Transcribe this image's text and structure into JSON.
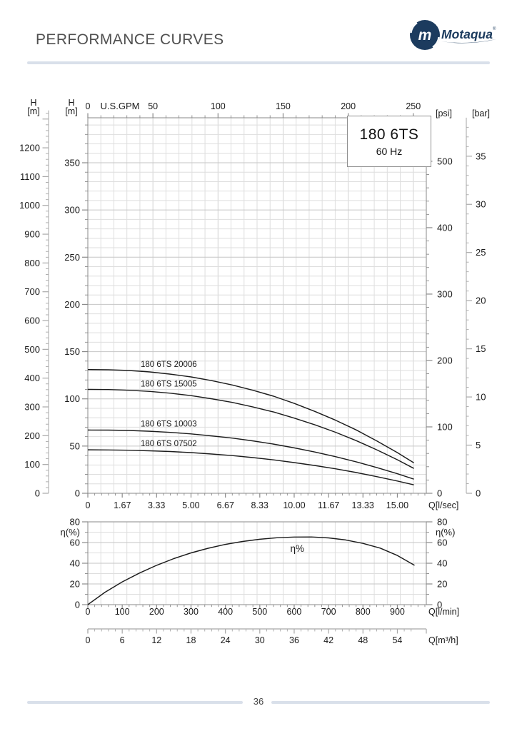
{
  "page": {
    "title": "PERFORMANCE CURVES",
    "page_number": "36"
  },
  "logo": {
    "name": "Motaqua",
    "monogram": "m",
    "registered_mark": "®"
  },
  "model_box": {
    "model": "180 6TS",
    "frequency": "60 Hz"
  },
  "colors": {
    "navy": "#1c3b5e",
    "divider": "#d9e0ea",
    "title_text": "#4f4f4f",
    "curve": "#1c1c1c",
    "grid_minor": "#dedede",
    "grid_major": "#c6c6c6",
    "frame": "#9c9c9c",
    "tick": "#8a8a8a",
    "label_text": "#1a1a1a"
  },
  "chart_data": [
    {
      "id": "head_flow_chart",
      "type": "line",
      "title": "180 6TS 60 Hz head vs flow curves",
      "axes": {
        "top": {
          "title": "U.S.GPM",
          "tick_labels": [
            "0",
            "50",
            "100",
            "150",
            "200",
            "250"
          ],
          "minor_step": 10,
          "max": 260
        },
        "bottom": {
          "title": "Q[l/sec]",
          "tick_labels": [
            "0",
            "1.67",
            "3.33",
            "5.00",
            "6.67",
            "8.33",
            "10.00",
            "11.67",
            "13.33",
            "15.00"
          ]
        },
        "left_outer": {
          "title_line1": "H",
          "title_line2": "[m]",
          "tick_labels": [
            "0",
            "100",
            "200",
            "300",
            "400",
            "500",
            "600",
            "700",
            "800",
            "900",
            "1000",
            "1100",
            "1200"
          ],
          "minor_step": 20,
          "max": 1330
        },
        "left_inner": {
          "title_line1": "H",
          "title_line2": "[m]",
          "tick_labels": [
            "0",
            "50",
            "100",
            "150",
            "200",
            "250",
            "300",
            "350"
          ],
          "minor_step": 10,
          "max": 392
        },
        "right_inner": {
          "title": "[psi]",
          "tick_labels": [
            "0",
            "100",
            "200",
            "300",
            "400",
            "500"
          ],
          "minor_step": 20,
          "max": 565
        },
        "right_outer": {
          "title": "[bar]",
          "tick_labels": [
            "0",
            "5",
            "10",
            "15",
            "20",
            "25",
            "30",
            "35"
          ],
          "minor_step": 1,
          "max": 39
        }
      },
      "series": [
        {
          "name": "180 6TS 20006",
          "label_q_lps": 2.56,
          "points_q_lps_h_m": [
            [
              0,
              131
            ],
            [
              1,
              130.8
            ],
            [
              2,
              130.0
            ],
            [
              3,
              128.5
            ],
            [
              4,
              126.2
            ],
            [
              5,
              123.2
            ],
            [
              6,
              119.3
            ],
            [
              7,
              114.7
            ],
            [
              8,
              109.1
            ],
            [
              9,
              102.8
            ],
            [
              10,
              95.2
            ],
            [
              11,
              86.7
            ],
            [
              12,
              77.4
            ],
            [
              13,
              67.1
            ],
            [
              14,
              55.5
            ],
            [
              15,
              43.1
            ],
            [
              15.8,
              32.2
            ]
          ]
        },
        {
          "name": "180 6TS 15005",
          "label_q_lps": 2.56,
          "points_q_lps_h_m": [
            [
              0,
              110
            ],
            [
              1,
              109.8
            ],
            [
              2,
              109.1
            ],
            [
              3,
              107.9
            ],
            [
              4,
              106.0
            ],
            [
              5,
              103.4
            ],
            [
              6,
              100.1
            ],
            [
              7,
              96.2
            ],
            [
              8,
              91.4
            ],
            [
              9,
              86.1
            ],
            [
              10,
              79.6
            ],
            [
              11,
              72.5
            ],
            [
              12,
              64.6
            ],
            [
              13,
              55.8
            ],
            [
              14,
              46.0
            ],
            [
              15,
              35.5
            ],
            [
              15.8,
              26.3
            ]
          ]
        },
        {
          "name": "180 6TS 10003",
          "label_q_lps": 2.56,
          "points_q_lps_h_m": [
            [
              0,
              67
            ],
            [
              1,
              66.9
            ],
            [
              2,
              66.5
            ],
            [
              3,
              65.7
            ],
            [
              4,
              64.5
            ],
            [
              5,
              62.9
            ],
            [
              6,
              60.8
            ],
            [
              7,
              58.4
            ],
            [
              8,
              55.5
            ],
            [
              9,
              52.1
            ],
            [
              10,
              48.1
            ],
            [
              11,
              43.7
            ],
            [
              12,
              38.8
            ],
            [
              13,
              33.3
            ],
            [
              14,
              27.3
            ],
            [
              15,
              20.7
            ],
            [
              15.8,
              15.0
            ]
          ]
        },
        {
          "name": "180 6TS 07502",
          "label_q_lps": 2.56,
          "points_q_lps_h_m": [
            [
              0,
              46
            ],
            [
              1,
              45.9
            ],
            [
              2,
              45.6
            ],
            [
              3,
              45.0
            ],
            [
              4,
              44.2
            ],
            [
              5,
              43.1
            ],
            [
              6,
              41.6
            ],
            [
              7,
              39.9
            ],
            [
              8,
              37.8
            ],
            [
              9,
              35.4
            ],
            [
              10,
              32.5
            ],
            [
              11,
              29.4
            ],
            [
              12,
              25.9
            ],
            [
              13,
              22.0
            ],
            [
              14,
              17.6
            ],
            [
              15,
              13.0
            ],
            [
              15.8,
              8.9
            ]
          ]
        }
      ]
    },
    {
      "id": "efficiency_chart",
      "type": "line",
      "title": "Efficiency curve",
      "axes": {
        "left": {
          "title": "η(%)",
          "tick_labels": [
            "0",
            "20",
            "40",
            "60",
            "80"
          ],
          "minor_step": 10,
          "max": 80
        },
        "right": {
          "title": "η(%)",
          "tick_labels": [
            "0",
            "20",
            "40",
            "60",
            "80"
          ]
        },
        "bottom": {
          "title": "Q[l/min]",
          "tick_labels": [
            "0",
            "100",
            "200",
            "300",
            "400",
            "500",
            "600",
            "700",
            "800",
            "900"
          ],
          "minor_step": 20
        },
        "bottom_outer": {
          "title": "Q[m³/h]",
          "tick_labels": [
            "0",
            "6",
            "12",
            "18",
            "24",
            "30",
            "36",
            "42",
            "48",
            "54"
          ],
          "minor_step": 1.2
        }
      },
      "series": [
        {
          "name": "η%",
          "points_q_lmin_eta_pct": [
            [
              0,
              0
            ],
            [
              50,
              12
            ],
            [
              100,
              22
            ],
            [
              150,
              30.5
            ],
            [
              200,
              38
            ],
            [
              250,
              44.5
            ],
            [
              300,
              50
            ],
            [
              350,
              54.5
            ],
            [
              400,
              58.2
            ],
            [
              450,
              61
            ],
            [
              500,
              63.2
            ],
            [
              550,
              64.6
            ],
            [
              600,
              65.3
            ],
            [
              650,
              65.4
            ],
            [
              700,
              64.5
            ],
            [
              750,
              62.5
            ],
            [
              800,
              59.2
            ],
            [
              850,
              54.6
            ],
            [
              900,
              47.5
            ],
            [
              950,
              38
            ]
          ]
        }
      ],
      "annotation": {
        "text": "η%",
        "q_lmin": 609,
        "eta_pct": 51
      }
    }
  ]
}
